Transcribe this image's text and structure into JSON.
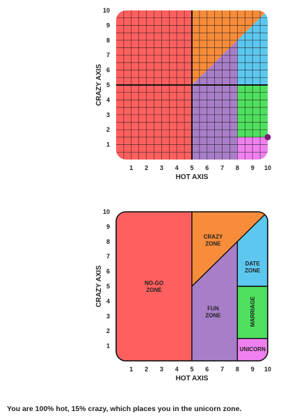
{
  "chart_data": [
    {
      "type": "scatter",
      "title": "",
      "xlabel": "HOT AXIS",
      "ylabel": "CRAZY AXIS",
      "xlim": [
        0,
        10
      ],
      "ylim": [
        0,
        10
      ],
      "xticks": [
        "1",
        "2",
        "3",
        "4",
        "5",
        "6",
        "7",
        "8",
        "9",
        "10"
      ],
      "yticks": [
        "1",
        "2",
        "3",
        "4",
        "5",
        "6",
        "7",
        "8",
        "9",
        "10"
      ],
      "grid": true,
      "point": {
        "x": 10,
        "y": 1.5
      },
      "point_color": "#7b1c74"
    },
    {
      "type": "area",
      "title": "",
      "xlabel": "HOT AXIS",
      "ylabel": "CRAZY AXIS",
      "xlim": [
        0,
        10
      ],
      "ylim": [
        0,
        10
      ],
      "xticks": [
        "1",
        "2",
        "3",
        "4",
        "5",
        "6",
        "7",
        "8",
        "9",
        "10"
      ],
      "yticks": [
        "1",
        "2",
        "3",
        "4",
        "5",
        "6",
        "7",
        "8",
        "9",
        "10"
      ],
      "grid": false,
      "zones": [
        {
          "name": "NO-GO ZONE",
          "color": "#ff5f5f",
          "lines": [
            "NO-GO",
            "ZONE"
          ],
          "polygon": [
            [
              0,
              0
            ],
            [
              5,
              0
            ],
            [
              5,
              10
            ],
            [
              0,
              10
            ]
          ],
          "label_at": [
            2.5,
            5
          ]
        },
        {
          "name": "CRAZY ZONE",
          "color": "#f78c3a",
          "lines": [
            "CRAZY",
            "ZONE"
          ],
          "polygon": [
            [
              5,
              5
            ],
            [
              5,
              10
            ],
            [
              10,
              10
            ]
          ],
          "label_at": [
            6.4,
            8.1
          ]
        },
        {
          "name": "FUN ZONE",
          "color": "#a87ec8",
          "lines": [
            "FUN",
            "ZONE"
          ],
          "polygon": [
            [
              5,
              0
            ],
            [
              5,
              5
            ],
            [
              8,
              8
            ],
            [
              8,
              0
            ]
          ],
          "label_at": [
            6.4,
            3.3
          ]
        },
        {
          "name": "DATE ZONE",
          "color": "#5cc8f0",
          "lines": [
            "DATE",
            "ZONE"
          ],
          "polygon": [
            [
              8,
              8
            ],
            [
              10,
              10
            ],
            [
              10,
              5
            ],
            [
              8,
              5
            ]
          ],
          "label_at": [
            9,
            6.3
          ]
        },
        {
          "name": "MARRIAGE",
          "color": "#4ee05e",
          "lines": [
            "MARRIAGE"
          ],
          "vertical": true,
          "polygon": [
            [
              8,
              5
            ],
            [
              10,
              5
            ],
            [
              10,
              1.5
            ],
            [
              8,
              1.5
            ]
          ],
          "label_at": [
            9,
            3.3
          ]
        },
        {
          "name": "UNICORN",
          "color": "#f080f0",
          "lines": [
            "UNICORN"
          ],
          "polygon": [
            [
              8,
              1.5
            ],
            [
              10,
              1.5
            ],
            [
              10,
              0
            ],
            [
              8,
              0
            ]
          ],
          "label_at": [
            9,
            0.8
          ]
        }
      ]
    }
  ],
  "result": {
    "text": "You are 100% hot, 15% crazy, which places you in the unicorn zone."
  }
}
